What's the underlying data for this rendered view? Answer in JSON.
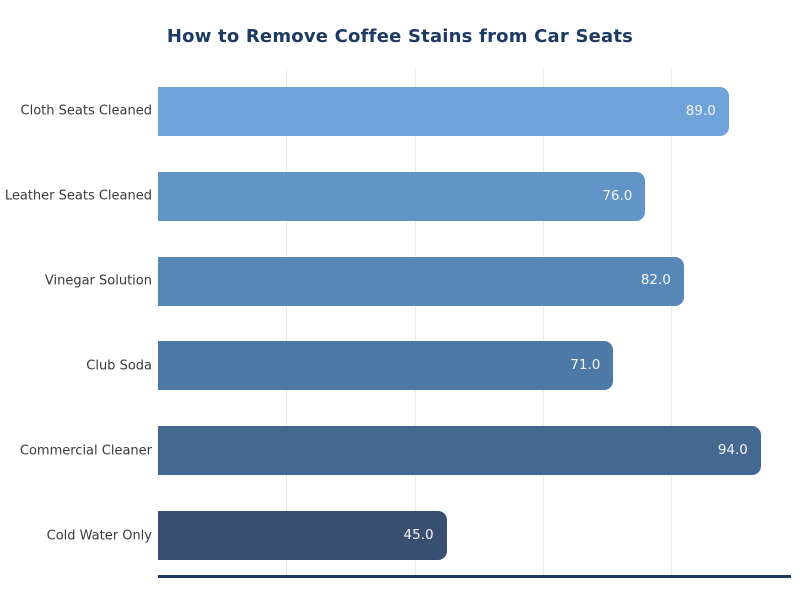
{
  "chart_data": {
    "type": "bar",
    "orientation": "horizontal",
    "title": "How to Remove Coffee Stains from Car Seats",
    "categories": [
      "Cloth Seats Cleaned",
      "Leather Seats Cleaned",
      "Vinegar Solution",
      "Club Soda",
      "Commercial Cleaner",
      "Cold Water Only"
    ],
    "values": [
      89.0,
      76.0,
      82.0,
      71.0,
      94.0,
      45.0
    ],
    "value_labels": [
      "89.0",
      "76.0",
      "82.0",
      "71.0",
      "94.0",
      "45.0"
    ],
    "bar_colors": [
      "#6fa3d9",
      "#6195c8",
      "#5787b7",
      "#4d79a6",
      "#456890",
      "#394f72"
    ],
    "xlim": [
      0,
      98.7
    ],
    "grid_values": [
      20,
      40,
      60,
      80
    ],
    "grid_on": true,
    "legend": null,
    "xlabel": "",
    "ylabel": "",
    "styles": {
      "background": "#ffffff",
      "title_color": "#1d3a63",
      "axis_line_color": "#1e3a5f",
      "gridline_color": "#ebebeb",
      "category_label_color": "#3a3a3a",
      "value_label_color": "#f5f5f5"
    }
  }
}
